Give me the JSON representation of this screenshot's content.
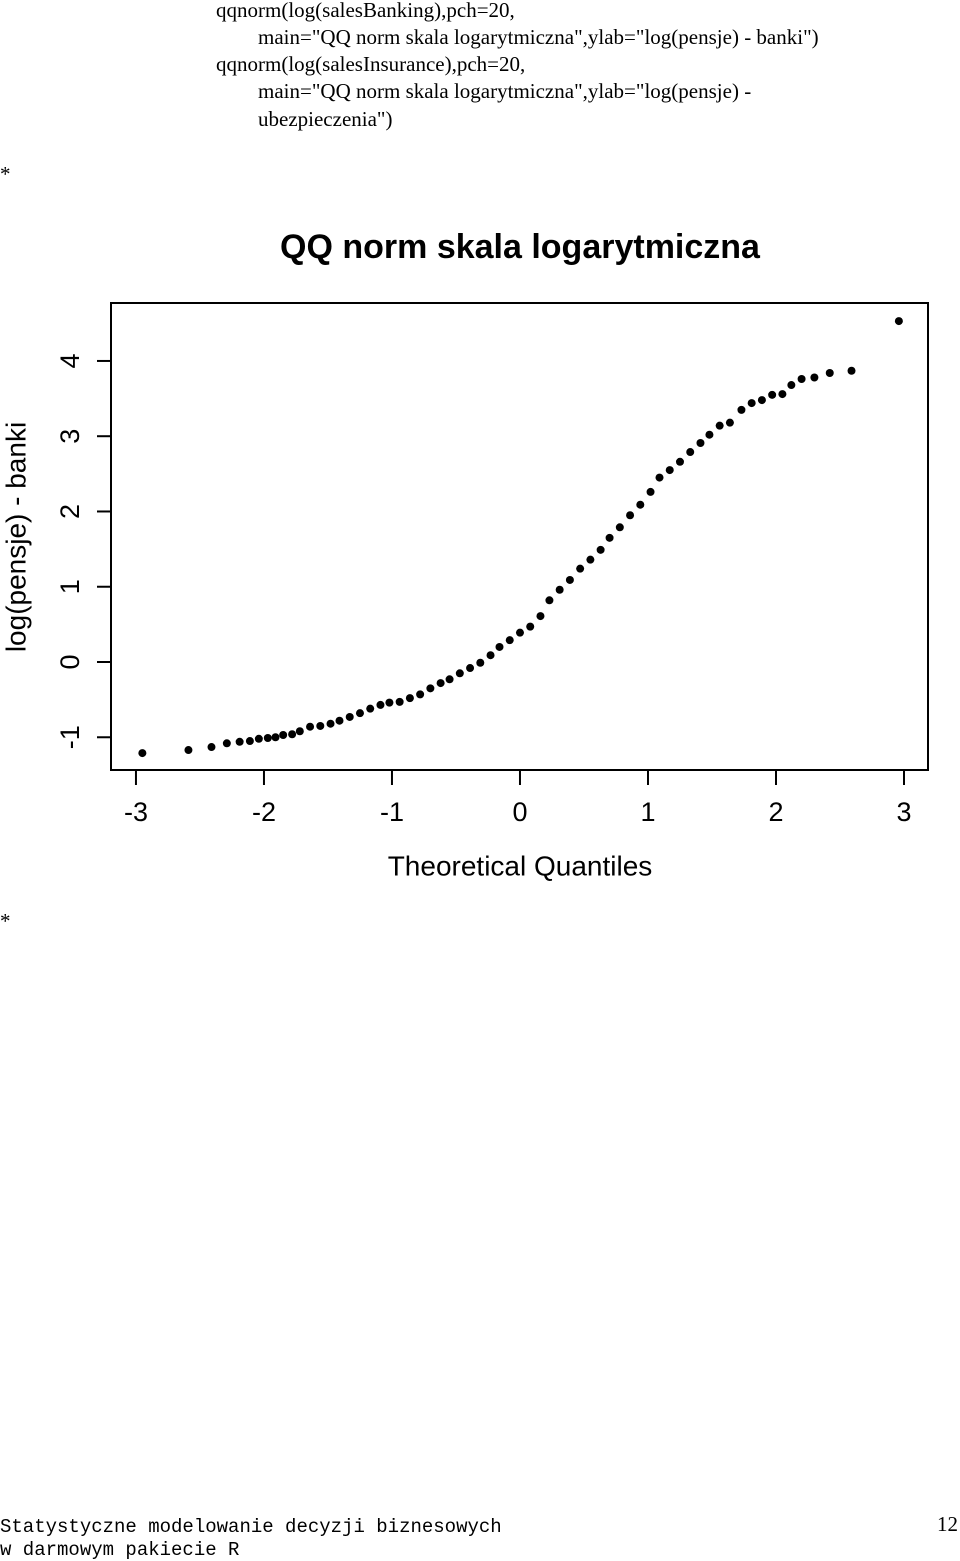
{
  "document": {
    "code": [
      "qqnorm(log(salesBanking),pch=20,",
      "main=\"QQ norm skala logarytmiczna\",ylab=\"log(pensje) - banki\")",
      "qqnorm(log(salesInsurance),pch=20,",
      "main=\"QQ norm skala logarytmiczna\",ylab=\"log(pensje) -",
      "ubezpieczenia\")"
    ],
    "bullets": [
      "*",
      "*"
    ],
    "footer": {
      "lines": [
        "Statystyczne modelowanie decyzji biznesowych",
        "w darmowym pakiecie R"
      ],
      "page": "12"
    }
  },
  "chart_data": {
    "type": "scatter",
    "title": "QQ norm skala logarytmiczna",
    "x_label": "Theoretical Quantiles",
    "y_label": "log(pensje) - banki",
    "color": "#000000",
    "xlim": [
      -3.195,
      3.1875
    ],
    "ylim": [
      -1.435,
      4.77
    ],
    "xticks": [
      -3,
      -2,
      -1,
      0,
      1,
      2,
      3
    ],
    "yticks": [
      -1,
      0,
      1,
      2,
      3,
      4
    ],
    "x": [
      -2.95,
      -2.59,
      -2.41,
      -2.29,
      -2.19,
      -2.11,
      -2.04,
      -1.97,
      -1.91,
      -1.85,
      -1.78,
      -1.72,
      -1.64,
      -1.56,
      -1.48,
      -1.41,
      -1.33,
      -1.25,
      -1.17,
      -1.09,
      -1.02,
      -0.94,
      -0.86,
      -0.78,
      -0.7,
      -0.62,
      -0.55,
      -0.47,
      -0.39,
      -0.31,
      -0.23,
      -0.16,
      -0.08,
      0,
      0.08,
      0.16,
      0.23,
      0.31,
      0.39,
      0.47,
      0.55,
      0.63,
      0.7,
      0.78,
      0.86,
      0.94,
      1.02,
      1.09,
      1.17,
      1.25,
      1.33,
      1.41,
      1.48,
      1.56,
      1.64,
      1.73,
      1.81,
      1.89,
      1.97,
      2.05,
      2.12,
      2.2,
      2.3,
      2.42,
      2.59,
      2.96
    ],
    "values": [
      -1.21,
      -1.17,
      -1.13,
      -1.08,
      -1.06,
      -1.05,
      -1.02,
      -1.01,
      -1.0,
      -0.97,
      -0.96,
      -0.92,
      -0.86,
      -0.85,
      -0.82,
      -0.78,
      -0.73,
      -0.68,
      -0.62,
      -0.57,
      -0.54,
      -0.53,
      -0.48,
      -0.43,
      -0.35,
      -0.28,
      -0.23,
      -0.15,
      -0.08,
      -0.01,
      0.09,
      0.2,
      0.29,
      0.39,
      0.47,
      0.61,
      0.82,
      0.96,
      1.09,
      1.24,
      1.36,
      1.49,
      1.65,
      1.79,
      1.95,
      2.09,
      2.26,
      2.45,
      2.55,
      2.66,
      2.79,
      2.91,
      3.02,
      3.14,
      3.18,
      3.35,
      3.44,
      3.48,
      3.55,
      3.56,
      3.68,
      3.76,
      3.78,
      3.84,
      3.87,
      4.53
    ]
  }
}
